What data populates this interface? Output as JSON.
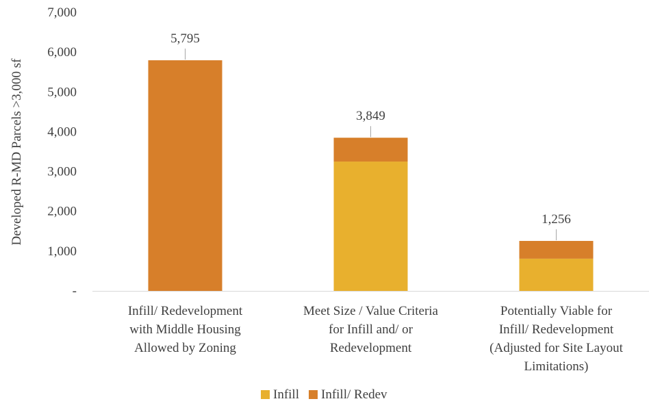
{
  "chart_data": {
    "type": "bar",
    "stacked": true,
    "ylabel": "Developed R-MD Parcels >3,000 sf",
    "xlabel": "",
    "ylim": [
      0,
      7000
    ],
    "yticks": [
      {
        "value": 0,
        "label": "-"
      },
      {
        "value": 1000,
        "label": "1,000"
      },
      {
        "value": 2000,
        "label": "2,000"
      },
      {
        "value": 3000,
        "label": "3,000"
      },
      {
        "value": 4000,
        "label": "4,000"
      },
      {
        "value": 5000,
        "label": "5,000"
      },
      {
        "value": 6000,
        "label": "6,000"
      },
      {
        "value": 7000,
        "label": "7,000"
      }
    ],
    "categories": [
      [
        "Infill/ Redevelopment",
        "with Middle Housing",
        "Allowed by Zoning"
      ],
      [
        "Meet Size / Value Criteria",
        "for Infill and/ or",
        "Redevelopment"
      ],
      [
        "Potentially Viable for",
        "Infill/ Redevelopment",
        "(Adjusted for Site Layout",
        "Limitations)"
      ]
    ],
    "series": [
      {
        "name": "Infill",
        "color": "#E8B02E",
        "values": [
          0,
          3250,
          810
        ]
      },
      {
        "name": "Infill/ Redev",
        "color": "#D77F2A",
        "values": [
          5795,
          599,
          446
        ]
      }
    ],
    "totals": [
      5795,
      3849,
      1256
    ],
    "total_labels": [
      "5,795",
      "3,849",
      "1,256"
    ],
    "grid": false,
    "legend_position": "bottom"
  }
}
